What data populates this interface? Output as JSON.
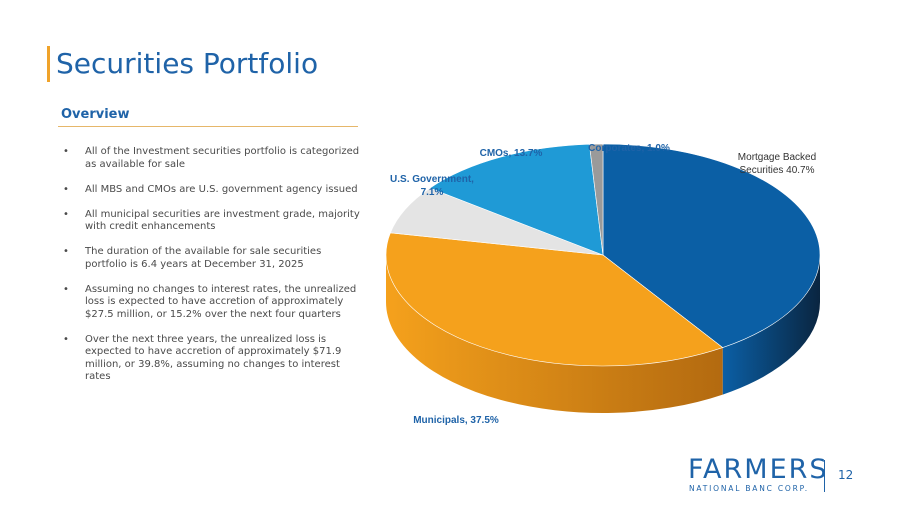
{
  "slide": {
    "title": "Securities Portfolio",
    "section": "Overview",
    "bullets": [
      "All of the Investment securities portfolio is categorized as available for sale",
      "All MBS and CMOs are U.S. government agency issued",
      "All municipal securities are investment grade, majority with credit enhancements",
      "The duration of the available for sale securities portfolio is 6.4 years at December 31, 2025",
      "Assuming no changes to interest rates, the unrealized loss is expected to have accretion of approximately $27.5 million, or 15.2% over the next four quarters",
      "Over the next three years, the unrealized loss is expected to have accretion of approximately $71.9 million, or 39.8%, assuming no changes to interest rates"
    ],
    "bullet_glyph": "•",
    "page_number": "12"
  },
  "logo": {
    "word": "FARMERS",
    "sub": "NATIONAL BANC CORP."
  },
  "chart_data": {
    "type": "pie",
    "style": "3d",
    "title": "",
    "slices": [
      {
        "label_lines": [
          "Mortgage Backed",
          "Securities 40.7%"
        ],
        "value": 40.7,
        "color": "#0b5fa5",
        "side_color": "#0a2540",
        "label_color": "#333333",
        "label_bold": false
      },
      {
        "label_lines": [
          "Municipals, 37.5%"
        ],
        "value": 37.5,
        "color": "#f5a11c",
        "side_color": "#b36a10",
        "label_color": "#1f63a8",
        "label_bold": true
      },
      {
        "label_lines": [
          "U.S. Government,",
          "7.1%"
        ],
        "value": 7.1,
        "color": "#e4e4e4",
        "side_color": "#9a9a9a",
        "label_color": "#1f63a8",
        "label_bold": true
      },
      {
        "label_lines": [
          "CMOs, 13.7%"
        ],
        "value": 13.7,
        "color": "#1f9ad6",
        "side_color": "#146a96",
        "label_color": "#1f63a8",
        "label_bold": true
      },
      {
        "label_lines": [
          "Corporates, 1.0%"
        ],
        "value": 1.0,
        "color": "#9a9a9a",
        "side_color": "#666666",
        "label_color": "#1f63a8",
        "label_bold": true
      }
    ]
  }
}
